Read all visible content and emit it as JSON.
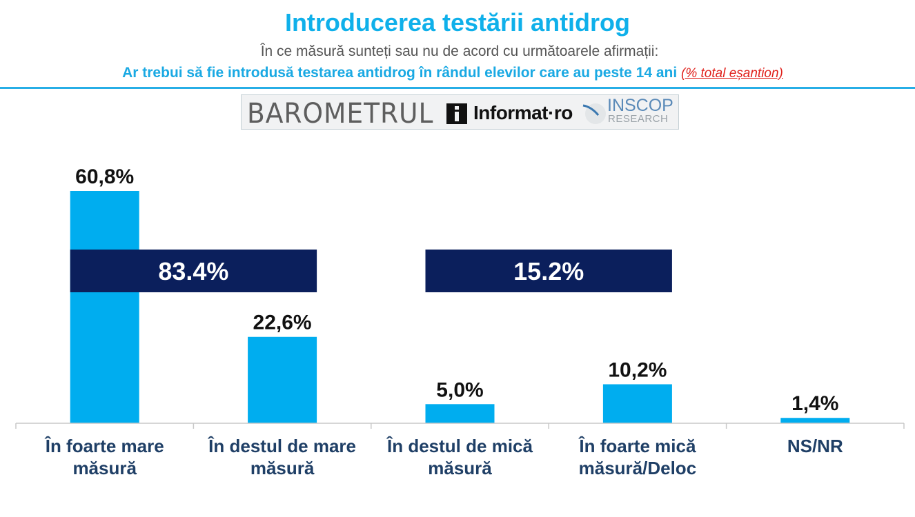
{
  "header": {
    "title": "Introducerea testării antidrog",
    "subtitle": "În ce măsură sunteți sau nu de acord cu următoarele afirmații:",
    "question": "Ar trebui să fie introdusă testarea antidrog în rândul elevilor care au peste 14 ani",
    "note": "(% total eșantion)"
  },
  "logo": {
    "barometrul": "BAROMETRUL",
    "informat": "Informat·ro",
    "inscop": "INSCOP",
    "research": "RESEARCH"
  },
  "colors": {
    "bar": "#00adef",
    "group_box": "#0b1f5c",
    "title": "#0fb0ea",
    "category_text": "#1f3f66",
    "rule": "#27aee6"
  },
  "chart_data": {
    "type": "bar",
    "categories": [
      [
        "În foarte mare",
        "măsură"
      ],
      [
        "În destul de mare",
        "măsură"
      ],
      [
        "În destul de mică",
        "măsură"
      ],
      [
        "În foarte mică",
        "măsură/Deloc"
      ],
      [
        "NS/NR"
      ]
    ],
    "values": [
      60.8,
      22.6,
      5.0,
      10.2,
      1.4
    ],
    "value_labels": [
      "60,8%",
      "22,6%",
      "5,0%",
      "10,2%",
      "1,4%"
    ],
    "unit": "%",
    "ylim": [
      0,
      70
    ],
    "grid": false,
    "groups": [
      {
        "label": "83.4%",
        "value": 83.4,
        "from": 0,
        "to": 1
      },
      {
        "label": "15.2%",
        "value": 15.2,
        "from": 2,
        "to": 3
      }
    ]
  }
}
